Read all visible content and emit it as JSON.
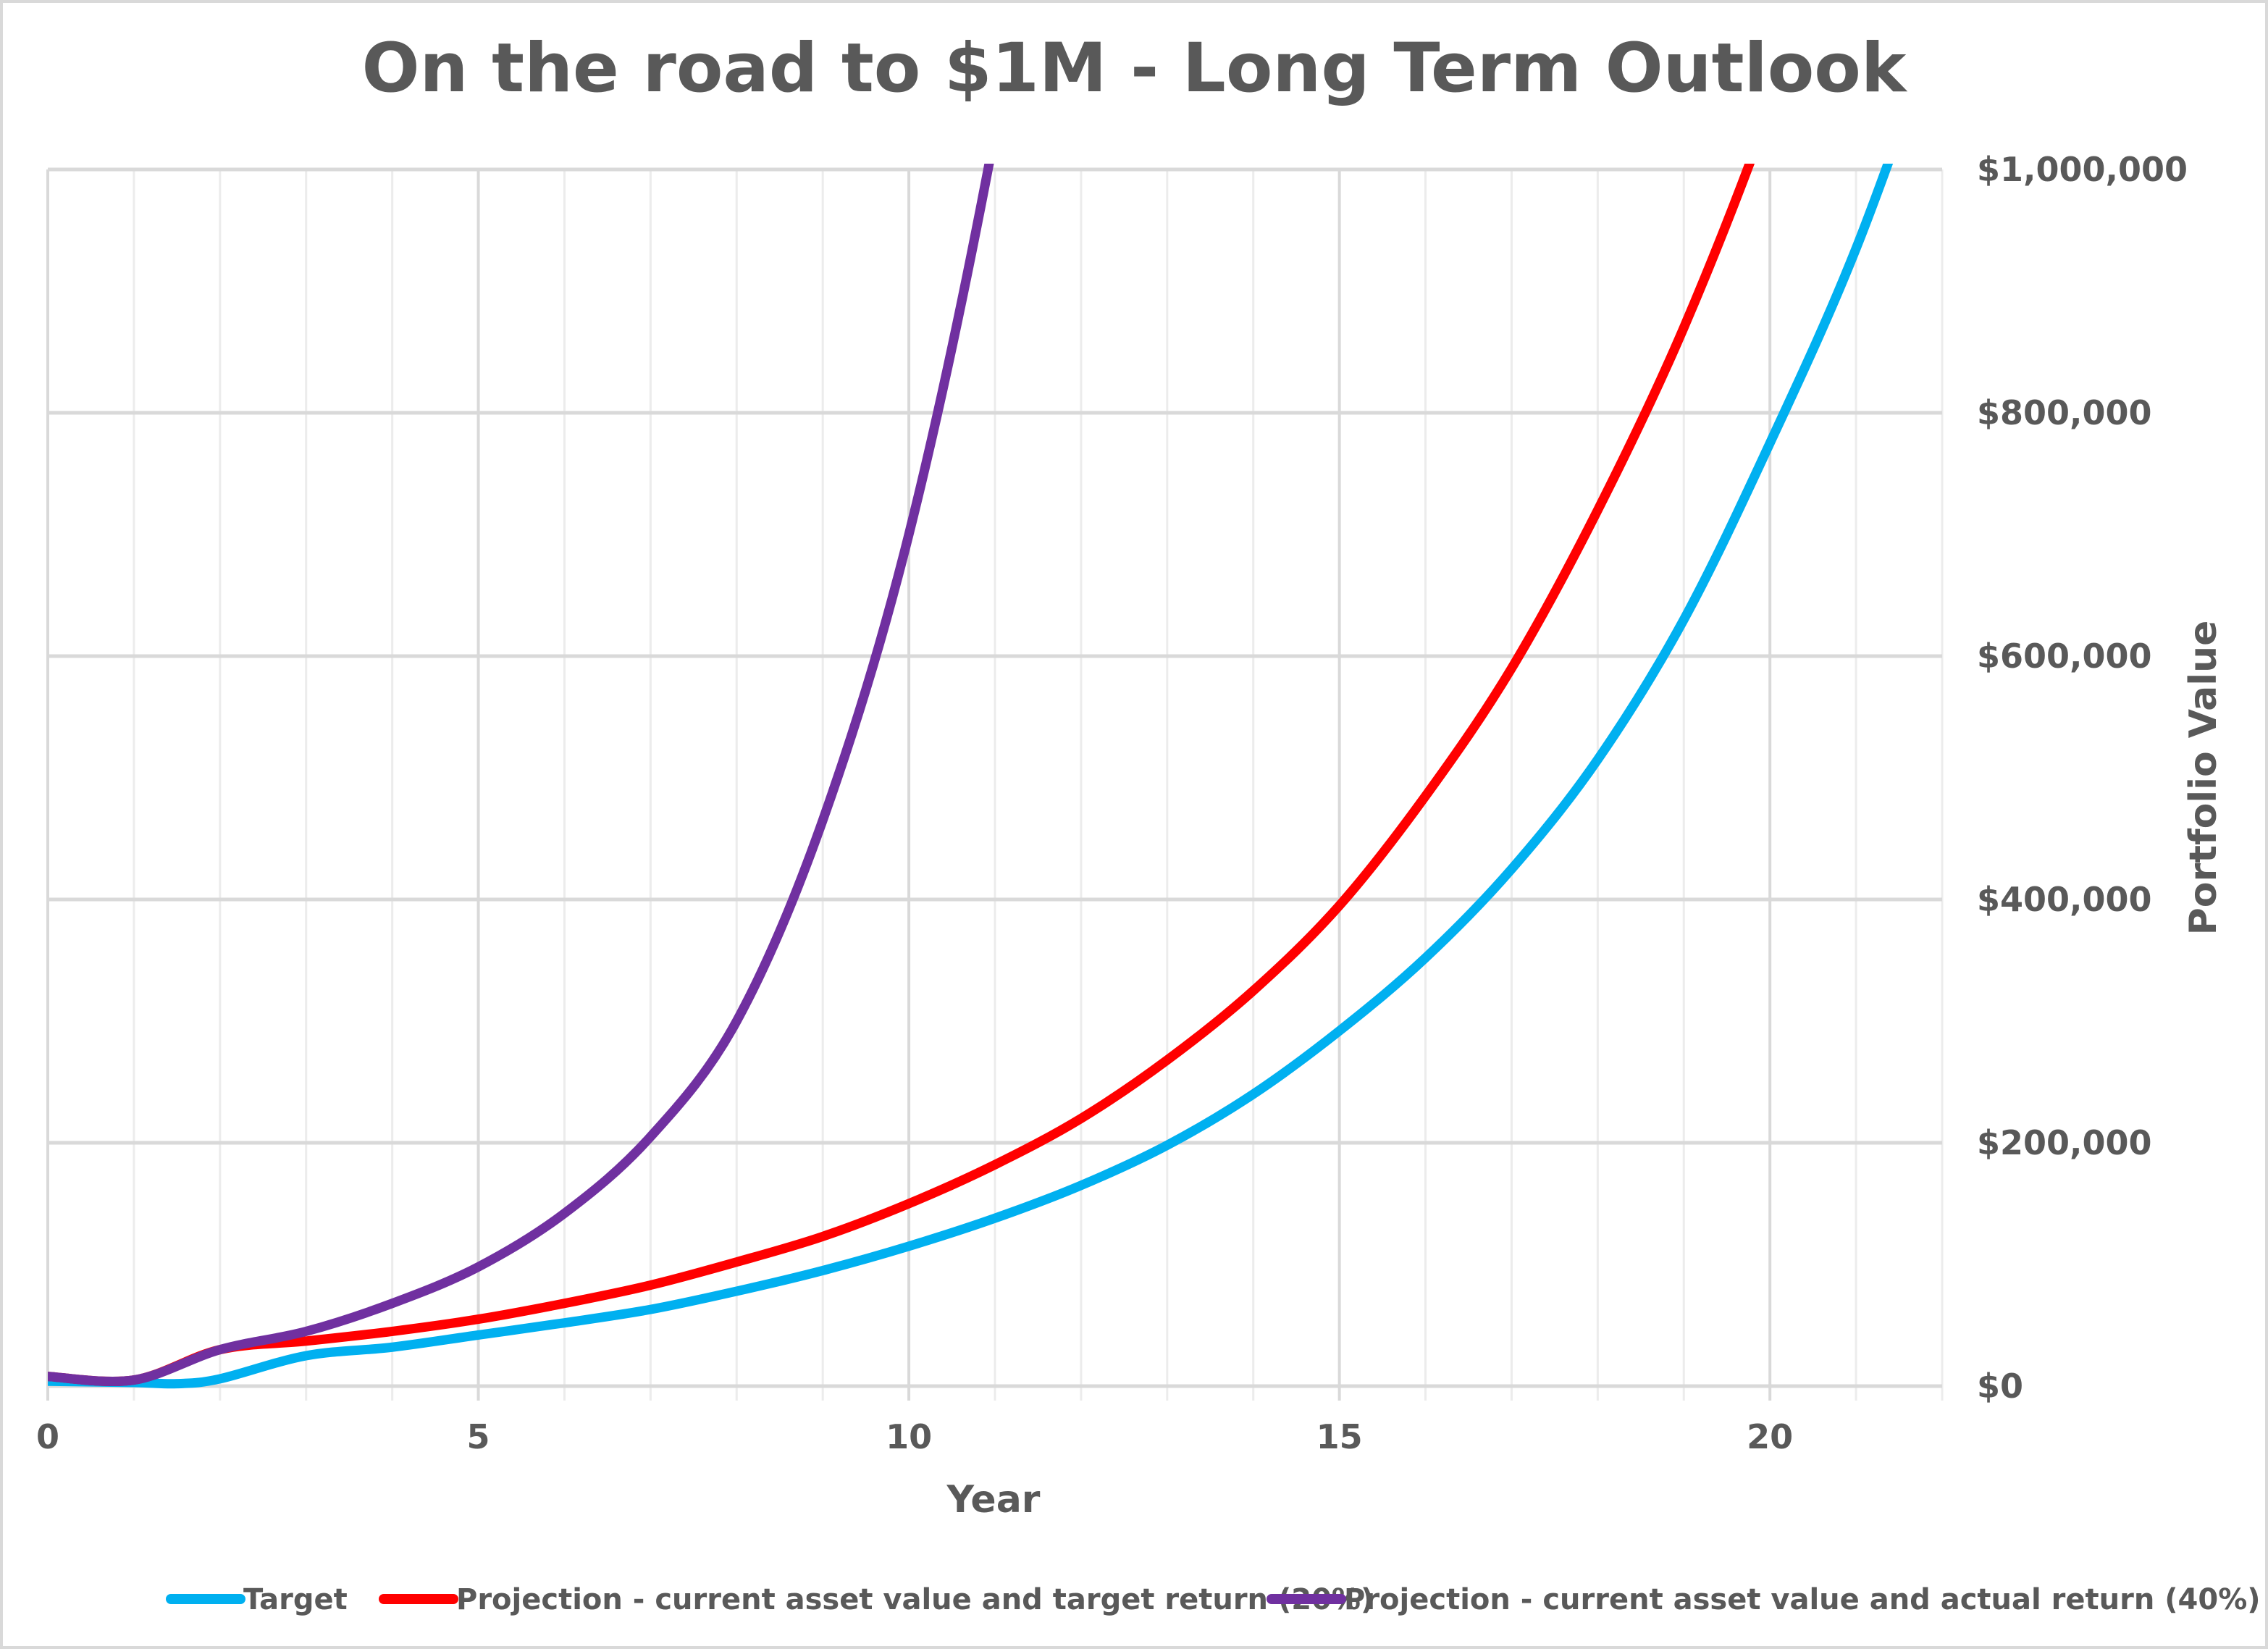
{
  "chart_data": {
    "type": "line",
    "title": "On the road to $1M - Long Term Outlook",
    "xlabel": "Year",
    "ylabel": "Portfolio Value",
    "xlim": [
      0,
      22
    ],
    "ylim": [
      0,
      1000000
    ],
    "x_ticks": [
      0,
      5,
      10,
      15,
      20
    ],
    "x_tick_labels": [
      "0",
      "5",
      "10",
      "15",
      "20"
    ],
    "y_ticks": [
      0,
      200000,
      400000,
      600000,
      800000,
      1000000
    ],
    "y_tick_labels": [
      "$0",
      "$200,000",
      "$400,000",
      "$600,000",
      "$800,000",
      "$1,000,000"
    ],
    "y_axis_side": "right",
    "grid": true,
    "legend_position": "bottom",
    "series": [
      {
        "name": "Target",
        "color": "#00B0F0",
        "x": [
          0,
          1,
          1.5,
          2,
          3,
          4,
          5,
          6,
          7,
          8,
          9,
          10,
          11,
          12,
          13,
          14,
          15,
          16,
          17,
          18,
          19,
          20,
          21,
          22
        ],
        "y": [
          4000,
          3000,
          2000,
          6000,
          25000,
          32000,
          42000,
          52000,
          63000,
          78000,
          95000,
          115000,
          138000,
          165000,
          198000,
          240000,
          292000,
          352000,
          425000,
          515000,
          630000,
          775000,
          935000,
          1130000
        ]
      },
      {
        "name": "Projection - current asset value and target return (20%)",
        "color": "#FF0000",
        "x": [
          0,
          1,
          2,
          3,
          4,
          5,
          6,
          7,
          8,
          9,
          10,
          11,
          12,
          13,
          14,
          15,
          16,
          17,
          18,
          19,
          20,
          21
        ],
        "y": [
          8000,
          5000,
          30000,
          37000,
          45000,
          55000,
          68000,
          83000,
          102000,
          123000,
          150000,
          182000,
          220000,
          268000,
          325000,
          395000,
          485000,
          590000,
          720000,
          870000,
          1050000,
          1260000
        ]
      },
      {
        "name": "Projection - current asset value and actual return (40%)",
        "color": "#7030A0",
        "x": [
          0,
          1,
          2,
          3,
          4,
          5,
          6,
          7,
          8,
          9,
          10,
          11,
          12
        ],
        "y": [
          8000,
          5000,
          30000,
          45000,
          68000,
          98000,
          142000,
          205000,
          300000,
          465000,
          700000,
          1030000,
          1450000
        ]
      }
    ]
  }
}
